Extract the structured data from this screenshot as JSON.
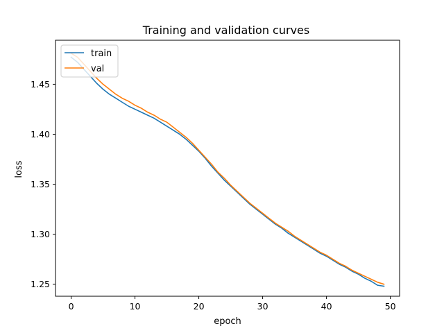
{
  "chart_data": {
    "type": "line",
    "title": "Training and validation curves",
    "xlabel": "epoch",
    "ylabel": "loss",
    "xlim": [
      -2.45,
      51.45
    ],
    "ylim": [
      1.238,
      1.494
    ],
    "xticks": [
      0,
      10,
      20,
      30,
      40,
      50
    ],
    "yticks": [
      1.25,
      1.3,
      1.35,
      1.4,
      1.45
    ],
    "ytick_labels": [
      "1.25",
      "1.30",
      "1.35",
      "1.40",
      "1.45"
    ],
    "legend_position": "upper left",
    "grid": false,
    "x": [
      0,
      1,
      2,
      3,
      4,
      5,
      6,
      7,
      8,
      9,
      10,
      11,
      12,
      13,
      14,
      15,
      16,
      17,
      18,
      19,
      20,
      21,
      22,
      23,
      24,
      25,
      26,
      27,
      28,
      29,
      30,
      31,
      32,
      33,
      34,
      35,
      36,
      37,
      38,
      39,
      40,
      41,
      42,
      43,
      44,
      45,
      46,
      47,
      48,
      49
    ],
    "series": [
      {
        "name": "train",
        "color": "#1f77b4",
        "values": [
          1.477,
          1.472,
          1.465,
          1.458,
          1.451,
          1.445,
          1.44,
          1.436,
          1.432,
          1.428,
          1.425,
          1.422,
          1.419,
          1.416,
          1.412,
          1.408,
          1.404,
          1.4,
          1.395,
          1.389,
          1.383,
          1.376,
          1.368,
          1.361,
          1.354,
          1.348,
          1.342,
          1.336,
          1.33,
          1.325,
          1.32,
          1.315,
          1.31,
          1.306,
          1.301,
          1.297,
          1.293,
          1.289,
          1.285,
          1.281,
          1.278,
          1.274,
          1.27,
          1.267,
          1.263,
          1.26,
          1.256,
          1.253,
          1.249,
          1.248
        ]
      },
      {
        "name": "val",
        "color": "#ff7f0e",
        "values": [
          1.481,
          1.477,
          1.47,
          1.463,
          1.456,
          1.45,
          1.445,
          1.44,
          1.436,
          1.433,
          1.429,
          1.426,
          1.422,
          1.419,
          1.415,
          1.412,
          1.407,
          1.402,
          1.397,
          1.391,
          1.384,
          1.377,
          1.37,
          1.362,
          1.356,
          1.349,
          1.343,
          1.337,
          1.331,
          1.326,
          1.321,
          1.316,
          1.311,
          1.307,
          1.303,
          1.298,
          1.294,
          1.29,
          1.286,
          1.282,
          1.279,
          1.275,
          1.271,
          1.268,
          1.264,
          1.261,
          1.258,
          1.255,
          1.252,
          1.25
        ]
      }
    ]
  }
}
